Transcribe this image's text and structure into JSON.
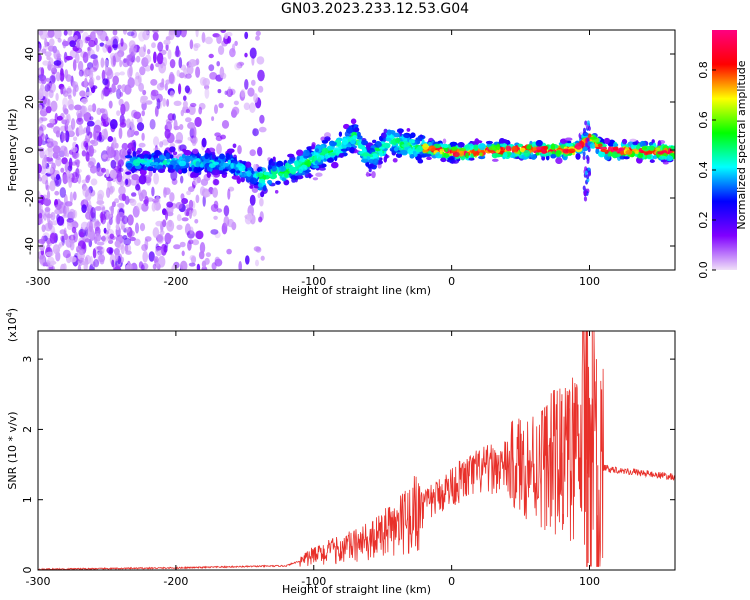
{
  "title": "GN03.2023.233.12.53.G04",
  "chart_data": [
    {
      "type": "heatmap",
      "xlabel": "Height of straight line (km)",
      "ylabel": "Frequency (Hz)",
      "xlim": [
        -300,
        162
      ],
      "ylim": [
        -50,
        50
      ],
      "x_ticks": [
        -300,
        -200,
        -100,
        0,
        100
      ],
      "y_ticks": [
        -40,
        -20,
        0,
        20,
        40
      ],
      "colorbar": {
        "label": "Normalized spectral amplitude",
        "range": [
          0,
          1
        ],
        "ticks": [
          0.0,
          0.2,
          0.4,
          0.6,
          0.8
        ],
        "colors": [
          "#f0e0f8",
          "#8000ff",
          "#0000ff",
          "#00ffff",
          "#00ff00",
          "#ffff00",
          "#ff0000",
          "#ff0080"
        ]
      },
      "ridge": [
        {
          "x": -230,
          "f": -5
        },
        {
          "x": -200,
          "f": -5
        },
        {
          "x": -160,
          "f": -6
        },
        {
          "x": -140,
          "f": -12
        },
        {
          "x": -120,
          "f": -9
        },
        {
          "x": -100,
          "f": -4
        },
        {
          "x": -80,
          "f": 2
        },
        {
          "x": -70,
          "f": 6
        },
        {
          "x": -60,
          "f": -4
        },
        {
          "x": -45,
          "f": 4
        },
        {
          "x": -35,
          "f": 2
        },
        {
          "x": -25,
          "f": 1
        },
        {
          "x": 0,
          "f": -1
        },
        {
          "x": 50,
          "f": 0
        },
        {
          "x": 90,
          "f": 0
        },
        {
          "x": 100,
          "f": 5
        },
        {
          "x": 110,
          "f": 0
        },
        {
          "x": 162,
          "f": -1
        }
      ]
    },
    {
      "type": "line",
      "xlabel": "Height of straight line (km)",
      "ylabel": "SNR (10 * v/v)",
      "y_multiplier": "(x10",
      "y_multiplier_exp": "4",
      "y_multiplier_close": ")",
      "xlim": [
        -300,
        162
      ],
      "ylim": [
        0,
        3.4
      ],
      "x_ticks": [
        -300,
        -200,
        -100,
        0,
        100
      ],
      "y_ticks": [
        0,
        1,
        2,
        3
      ],
      "color": "#e8302a",
      "envelope": [
        {
          "x": -300,
          "y": 0.01
        },
        {
          "x": -200,
          "y": 0.03
        },
        {
          "x": -120,
          "y": 0.06
        },
        {
          "x": -100,
          "y": 0.2
        },
        {
          "x": -80,
          "y": 0.3
        },
        {
          "x": -60,
          "y": 0.4
        },
        {
          "x": -40,
          "y": 0.6
        },
        {
          "x": -20,
          "y": 0.9
        },
        {
          "x": 0,
          "y": 1.2
        },
        {
          "x": 20,
          "y": 1.4
        },
        {
          "x": 40,
          "y": 1.48
        },
        {
          "x": 60,
          "y": 1.5
        },
        {
          "x": 80,
          "y": 1.55
        },
        {
          "x": 95,
          "y": 1.6
        },
        {
          "x": 110,
          "y": 1.45
        },
        {
          "x": 130,
          "y": 1.4
        },
        {
          "x": 162,
          "y": 1.32
        }
      ],
      "spikes": [
        {
          "x": 80,
          "y": 2.5
        },
        {
          "x": 85,
          "y": 2.3
        },
        {
          "x": 90,
          "y": 2.6
        },
        {
          "x": 98,
          "y": 3.4
        },
        {
          "x": 102,
          "y": 3.4
        },
        {
          "x": 105,
          "y": 3.0
        },
        {
          "x": 106,
          "y": 0.05
        },
        {
          "x": 99,
          "y": 0.1
        }
      ]
    }
  ]
}
